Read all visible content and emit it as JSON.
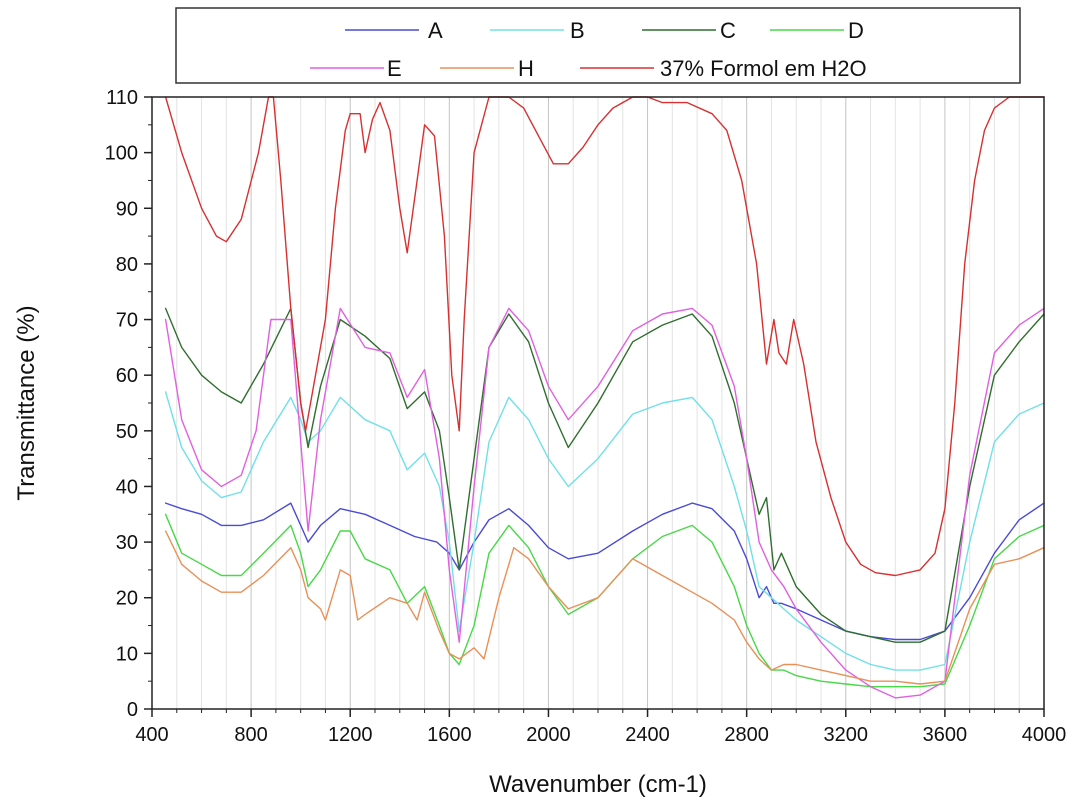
{
  "chart_data": {
    "type": "line",
    "title": "",
    "xlabel": "Wavenumber (cm-1)",
    "ylabel": "Transmittance (%)",
    "xlim": [
      400,
      4000
    ],
    "ylim": [
      0,
      110
    ],
    "x_ticks": [
      "400",
      "800",
      "1200",
      "1600",
      "2000",
      "2400",
      "2800",
      "3200",
      "3600",
      "4000"
    ],
    "y_ticks": [
      "0",
      "10",
      "20",
      "30",
      "40",
      "50",
      "60",
      "70",
      "80",
      "90",
      "100",
      "110"
    ],
    "grid": "vertical",
    "legend_position": "top",
    "series": [
      {
        "name": "A",
        "color": "#4a4ad8",
        "x": [
          455,
          520,
          600,
          680,
          760,
          850,
          960,
          1000,
          1030,
          1080,
          1160,
          1260,
          1360,
          1460,
          1550,
          1600,
          1640,
          1700,
          1760,
          1840,
          1920,
          2000,
          2080,
          2200,
          2340,
          2460,
          2580,
          2660,
          2750,
          2800,
          2850,
          2880,
          2910,
          2940,
          3000,
          3100,
          3200,
          3300,
          3400,
          3500,
          3600,
          3700,
          3800,
          3900,
          4000
        ],
        "y": [
          37,
          36,
          35,
          33,
          33,
          34,
          37,
          33,
          30,
          33,
          36,
          35,
          33,
          31,
          30,
          28,
          25,
          30,
          34,
          36,
          33,
          29,
          27,
          28,
          32,
          35,
          37,
          36,
          32,
          27,
          20,
          22,
          19,
          19,
          18,
          16,
          14,
          13,
          12.5,
          12.5,
          14,
          20,
          28,
          34,
          37
        ]
      },
      {
        "name": "B",
        "color": "#70e0e8",
        "x": [
          455,
          520,
          600,
          680,
          760,
          850,
          960,
          1000,
          1030,
          1080,
          1160,
          1260,
          1360,
          1430,
          1500,
          1560,
          1600,
          1640,
          1700,
          1760,
          1840,
          1920,
          2000,
          2080,
          2200,
          2340,
          2460,
          2580,
          2660,
          2750,
          2800,
          2850,
          2900,
          2950,
          3000,
          3100,
          3200,
          3300,
          3400,
          3500,
          3600,
          3700,
          3800,
          3900,
          4000
        ],
        "y": [
          57,
          47,
          41,
          38,
          39,
          48,
          56,
          52,
          48,
          50,
          56,
          52,
          50,
          43,
          46,
          40,
          30,
          14,
          30,
          48,
          56,
          52,
          45,
          40,
          45,
          53,
          55,
          56,
          52,
          40,
          32,
          22,
          20,
          18,
          16,
          13,
          10,
          8,
          7,
          7,
          8,
          30,
          48,
          53,
          55
        ]
      },
      {
        "name": "C",
        "color": "#2f6e2f",
        "x": [
          455,
          520,
          600,
          680,
          760,
          850,
          960,
          1000,
          1030,
          1080,
          1160,
          1260,
          1360,
          1430,
          1500,
          1560,
          1600,
          1640,
          1700,
          1760,
          1840,
          1920,
          2000,
          2080,
          2200,
          2340,
          2460,
          2580,
          2660,
          2750,
          2800,
          2850,
          2880,
          2910,
          2940,
          3000,
          3100,
          3200,
          3300,
          3400,
          3500,
          3600,
          3700,
          3800,
          3900,
          4000
        ],
        "y": [
          72,
          65,
          60,
          57,
          55,
          62,
          72,
          55,
          47,
          58,
          70,
          67,
          63,
          54,
          57,
          50,
          38,
          25,
          45,
          65,
          71,
          66,
          55,
          47,
          55,
          66,
          69,
          71,
          67,
          55,
          45,
          35,
          38,
          25,
          28,
          22,
          17,
          14,
          13,
          12,
          12,
          14,
          40,
          60,
          66,
          71
        ]
      },
      {
        "name": "D",
        "color": "#48d848",
        "x": [
          455,
          520,
          600,
          680,
          760,
          850,
          960,
          1000,
          1030,
          1080,
          1160,
          1200,
          1260,
          1360,
          1430,
          1500,
          1560,
          1600,
          1640,
          1700,
          1760,
          1840,
          1920,
          2000,
          2080,
          2200,
          2340,
          2460,
          2580,
          2660,
          2750,
          2800,
          2850,
          2900,
          2950,
          3000,
          3100,
          3200,
          3300,
          3400,
          3500,
          3600,
          3700,
          3800,
          3900,
          4000
        ],
        "y": [
          35,
          28,
          26,
          24,
          24,
          28,
          33,
          28,
          22,
          25,
          32,
          32,
          27,
          25,
          19,
          22,
          15,
          10,
          8,
          15,
          28,
          33,
          29,
          22,
          17,
          20,
          27,
          31,
          33,
          30,
          22,
          15,
          10,
          7,
          7,
          6,
          5,
          4.5,
          4,
          4,
          4,
          4.5,
          15,
          27,
          31,
          33
        ]
      },
      {
        "name": "E",
        "color": "#e060e0",
        "x": [
          455,
          520,
          600,
          680,
          760,
          820,
          880,
          960,
          1000,
          1030,
          1080,
          1160,
          1260,
          1360,
          1430,
          1500,
          1560,
          1600,
          1640,
          1700,
          1760,
          1840,
          1920,
          2000,
          2080,
          2200,
          2340,
          2460,
          2580,
          2660,
          2750,
          2800,
          2850,
          2900,
          2950,
          3000,
          3100,
          3200,
          3300,
          3400,
          3500,
          3600,
          3700,
          3800,
          3900,
          4000
        ],
        "y": [
          70,
          52,
          43,
          40,
          42,
          50,
          70,
          70,
          48,
          32,
          52,
          72,
          65,
          64,
          56,
          61,
          45,
          25,
          12,
          40,
          65,
          72,
          68,
          58,
          52,
          58,
          68,
          71,
          72,
          69,
          58,
          45,
          30,
          25,
          22,
          18,
          12,
          7,
          4,
          2,
          2.5,
          5,
          42,
          64,
          69,
          72
        ]
      },
      {
        "name": "H",
        "color": "#e89058",
        "x": [
          455,
          520,
          600,
          680,
          760,
          850,
          960,
          1000,
          1030,
          1080,
          1100,
          1160,
          1200,
          1230,
          1260,
          1360,
          1430,
          1470,
          1500,
          1560,
          1600,
          1640,
          1700,
          1740,
          1800,
          1860,
          1920,
          2000,
          2080,
          2200,
          2340,
          2460,
          2580,
          2660,
          2750,
          2800,
          2850,
          2900,
          2950,
          3000,
          3100,
          3200,
          3300,
          3400,
          3500,
          3600,
          3700,
          3800,
          3900,
          4000
        ],
        "y": [
          32,
          26,
          23,
          21,
          21,
          24,
          29,
          25,
          20,
          18,
          16,
          25,
          24,
          16,
          17,
          20,
          19,
          16,
          21,
          14,
          10,
          9,
          11,
          9,
          20,
          29,
          27,
          22,
          18,
          20,
          27,
          24,
          21,
          19,
          16,
          12,
          9,
          7,
          8,
          8,
          7,
          6,
          5,
          5,
          4.5,
          5,
          18,
          26,
          27,
          29
        ]
      },
      {
        "name": "37% Formol em H2O",
        "color": "#d83030",
        "x": [
          455,
          520,
          600,
          660,
          700,
          760,
          830,
          870,
          890,
          920,
          960,
          1000,
          1020,
          1060,
          1100,
          1140,
          1180,
          1200,
          1240,
          1260,
          1290,
          1320,
          1360,
          1400,
          1430,
          1470,
          1500,
          1540,
          1580,
          1610,
          1640,
          1660,
          1700,
          1760,
          1840,
          1900,
          1960,
          2020,
          2080,
          2140,
          2200,
          2260,
          2340,
          2400,
          2460,
          2560,
          2660,
          2720,
          2780,
          2840,
          2880,
          2910,
          2930,
          2960,
          2990,
          3030,
          3080,
          3140,
          3200,
          3260,
          3320,
          3400,
          3500,
          3560,
          3600,
          3640,
          3680,
          3720,
          3760,
          3800,
          3860,
          3900,
          4000
        ],
        "y": [
          110,
          100,
          90,
          85,
          84,
          88,
          100,
          110,
          110,
          95,
          72,
          55,
          50,
          60,
          70,
          90,
          104,
          107,
          107,
          100,
          106,
          109,
          104,
          90,
          82,
          95,
          105,
          103,
          85,
          60,
          50,
          70,
          100,
          110,
          110,
          108,
          103,
          98,
          98,
          101,
          105,
          108,
          110,
          110,
          109,
          109,
          107,
          104,
          95,
          80,
          62,
          70,
          64,
          62,
          70,
          62,
          48,
          38,
          30,
          26,
          24.5,
          24,
          25,
          28,
          36,
          55,
          80,
          95,
          104,
          108,
          110,
          110,
          110
        ]
      }
    ]
  }
}
